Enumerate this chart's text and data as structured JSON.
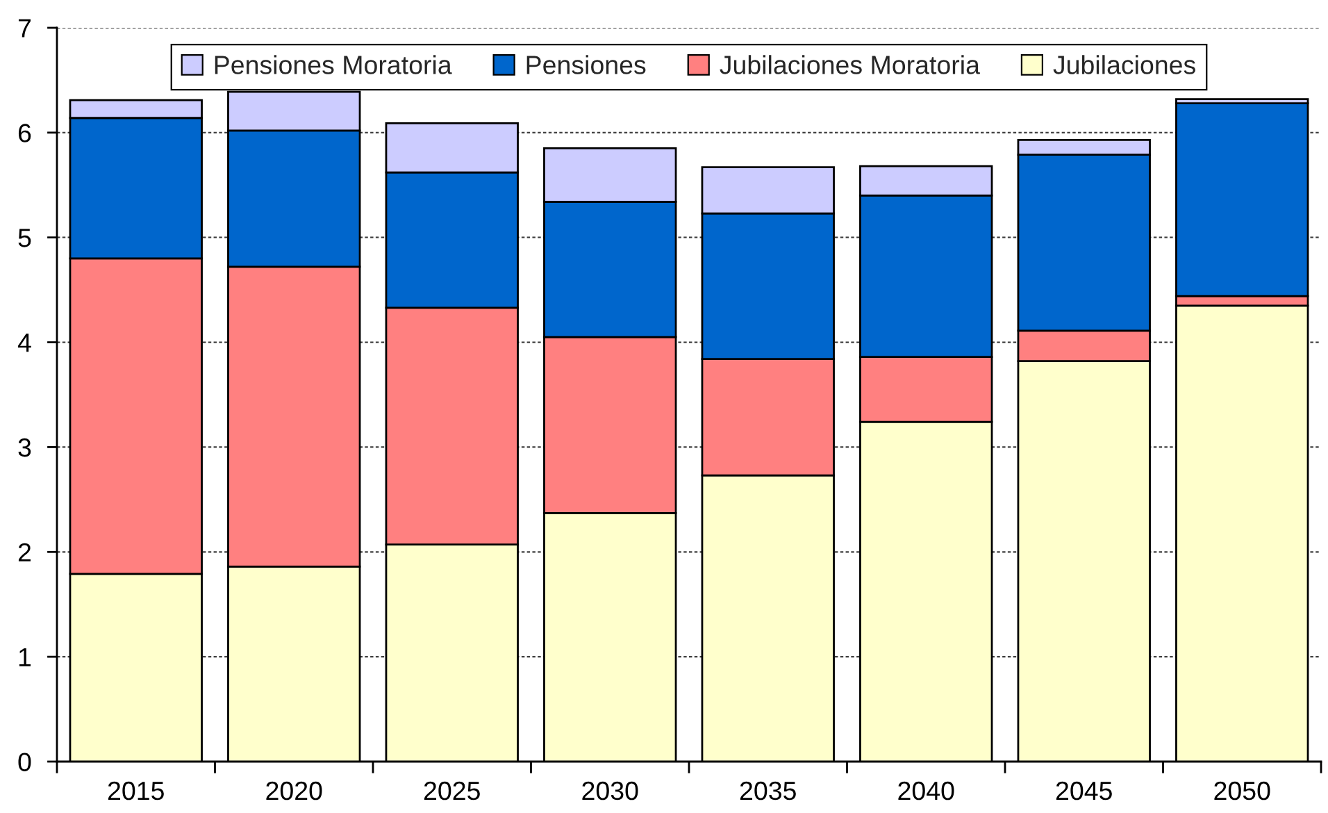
{
  "chart_data": {
    "type": "bar",
    "stacked": true,
    "categories": [
      "2015",
      "2020",
      "2025",
      "2030",
      "2035",
      "2040",
      "2045",
      "2050"
    ],
    "series": [
      {
        "name": "Jubilaciones",
        "color": "#ffffcc",
        "values": [
          1.79,
          1.86,
          2.07,
          2.37,
          2.73,
          3.24,
          3.82,
          4.35
        ]
      },
      {
        "name": "Jubilaciones Moratoria",
        "color": "#ff8080",
        "values": [
          3.01,
          2.86,
          2.26,
          1.68,
          1.11,
          0.62,
          0.29,
          0.09
        ]
      },
      {
        "name": "Pensiones",
        "color": "#0066cc",
        "values": [
          1.34,
          1.3,
          1.29,
          1.29,
          1.39,
          1.54,
          1.68,
          1.84
        ]
      },
      {
        "name": "Pensiones Moratoria",
        "color": "#ccccff",
        "values": [
          0.17,
          0.37,
          0.47,
          0.51,
          0.44,
          0.28,
          0.14,
          0.04
        ]
      }
    ],
    "ylim": [
      0,
      7
    ],
    "yticks": [
      0,
      1,
      2,
      3,
      4,
      5,
      6,
      7
    ],
    "grid": "y",
    "legend": "top"
  }
}
